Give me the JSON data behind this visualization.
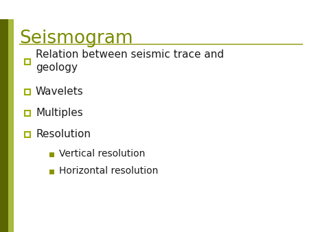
{
  "title": "Seismogram",
  "title_color": "#7B8B00",
  "title_fontsize": 19,
  "background_color": "#FFFFFF",
  "left_bar_color": "#5C6600",
  "left_bar_color2": "#A8B840",
  "separator_color": "#8B9400",
  "bullet1_items": [
    "Relation between seismic trace and\ngeology",
    "Wavelets",
    "Multiples",
    "Resolution"
  ],
  "bullet2_items": [
    "Vertical resolution",
    "Horizontal resolution"
  ],
  "text_color": "#1A1A1A",
  "bullet1_fontsize": 11,
  "bullet2_fontsize": 10,
  "bullet_sq1_edge": "#9BAD00",
  "bullet_sq1_face": "#FFFFFF",
  "bullet_sq2_color": "#8B9400"
}
